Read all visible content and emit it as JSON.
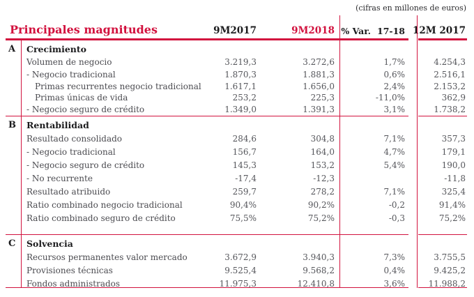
{
  "note": "(cifras en millones de euros)",
  "title": "Principales magnitudes",
  "colors": {
    "accent": "#d2123e"
  },
  "columns": {
    "c9m2017": "9M2017",
    "c9m2018": "9M2018",
    "var1": "% Var.",
    "var2": "17-18",
    "c12m2017": "12M 2017"
  },
  "sections": [
    {
      "letter": "A",
      "name": "Crecimiento",
      "rows": [
        {
          "label": "Volumen de negocio",
          "indent": 0,
          "values": [
            "3.219,3",
            "3.272,6",
            "1,7%",
            "4.254,3"
          ]
        },
        {
          "label": "- Negocio tradicional",
          "indent": 0,
          "values": [
            "1.870,3",
            "1.881,3",
            "0,6%",
            "2.516,1"
          ]
        },
        {
          "label": "Primas recurrentes negocio tradicional",
          "indent": 1,
          "values": [
            "1.617,1",
            "1.656,0",
            "2,4%",
            "2.153,2"
          ]
        },
        {
          "label": "Primas únicas de vida",
          "indent": 1,
          "values": [
            "253,2",
            "225,3",
            "-11,0%",
            "362,9"
          ]
        },
        {
          "label": "- Negocio seguro de crédito",
          "indent": 0,
          "values": [
            "1.349,0",
            "1.391,3",
            "3,1%",
            "1.738,2"
          ]
        }
      ]
    },
    {
      "letter": "B",
      "name": "Rentabilidad",
      "rows": [
        {
          "label": "Resultado consolidado",
          "indent": 0,
          "values": [
            "284,6",
            "304,8",
            "7,1%",
            "357,3"
          ]
        },
        {
          "label": "- Negocio tradicional",
          "indent": 0,
          "values": [
            "156,7",
            "164,0",
            "4,7%",
            "179,1"
          ]
        },
        {
          "label": "- Negocio seguro de crédito",
          "indent": 0,
          "values": [
            "145,3",
            "153,2",
            "5,4%",
            "190,0"
          ]
        },
        {
          "label": "- No recurrente",
          "indent": 0,
          "values": [
            "-17,4",
            "-12,3",
            "",
            "-11,8"
          ]
        },
        {
          "label": "Resultado atribuido",
          "indent": 0,
          "values": [
            "259,7",
            "278,2",
            "7,1%",
            "325,4"
          ]
        },
        {
          "label": "Ratio combinado negocio tradicional",
          "indent": 0,
          "values": [
            "90,4%",
            "90,2%",
            "-0,2",
            "91,4%"
          ]
        },
        {
          "label": "Ratio combinado seguro de crédito",
          "indent": 0,
          "values": [
            "75,5%",
            "75,2%",
            "-0,3",
            "75,2%"
          ]
        }
      ]
    },
    {
      "letter": "C",
      "name": "Solvencia",
      "rows": [
        {
          "label": "Recursos permanentes valor mercado",
          "indent": 0,
          "values": [
            "3.672,9",
            "3.940,3",
            "7,3%",
            "3.755,5"
          ]
        },
        {
          "label": "Provisiones técnicas",
          "indent": 0,
          "values": [
            "9.525,4",
            "9.568,2",
            "0,4%",
            "9.425,2"
          ]
        },
        {
          "label": "Fondos administrados",
          "indent": 0,
          "values": [
            "11.975,3",
            "12.410,8",
            "3,6%",
            "11.988,2"
          ]
        }
      ]
    }
  ]
}
